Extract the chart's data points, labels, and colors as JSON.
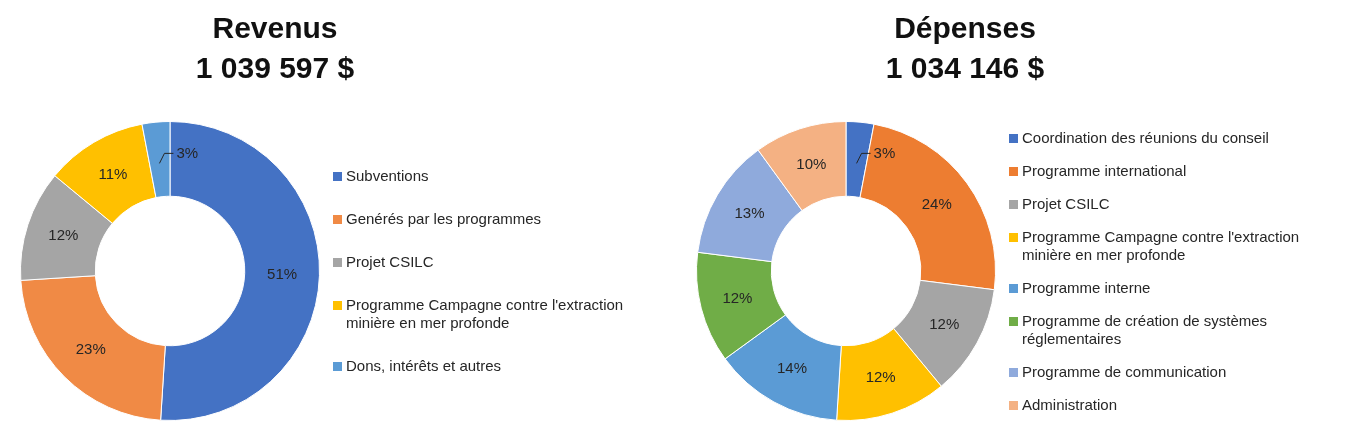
{
  "chart_data": [
    {
      "type": "donut",
      "title": "Revenus",
      "subtitle": "1 039 597 $",
      "categories": [
        "Subventions",
        "Genérés par les programmes",
        "Projet CSILC",
        "Programme Campagne contre l'extraction minière en mer profonde",
        "Dons, intérêts et autres"
      ],
      "values": [
        51,
        23,
        12,
        11,
        3
      ],
      "value_labels": [
        "51%",
        "23%",
        "12%",
        "11%",
        "3%"
      ],
      "colors": [
        "#4472c4",
        "#f08a45",
        "#a5a5a5",
        "#ffc000",
        "#5b9bd5"
      ],
      "legend": "right"
    },
    {
      "type": "donut",
      "title": "Dépenses",
      "subtitle": "1 034 146 $",
      "categories": [
        "Coordination des réunions du conseil",
        "Programme international",
        "Projet CSILC",
        "Programme Campagne contre l'extraction minière en mer profonde",
        "Programme interne",
        "Programme de création de systèmes réglementaires",
        "Programme de communication",
        "Administration"
      ],
      "values": [
        3,
        24,
        12,
        12,
        14,
        12,
        13,
        10
      ],
      "value_labels": [
        "3%",
        "24%",
        "12%",
        "12%",
        "14%",
        "12%",
        "13%",
        "10%"
      ],
      "colors": [
        "#4472c4",
        "#ed7d31",
        "#a5a5a5",
        "#ffc000",
        "#5b9bd5",
        "#70ad47",
        "#8faadc",
        "#f4b183"
      ],
      "legend": "right"
    }
  ]
}
